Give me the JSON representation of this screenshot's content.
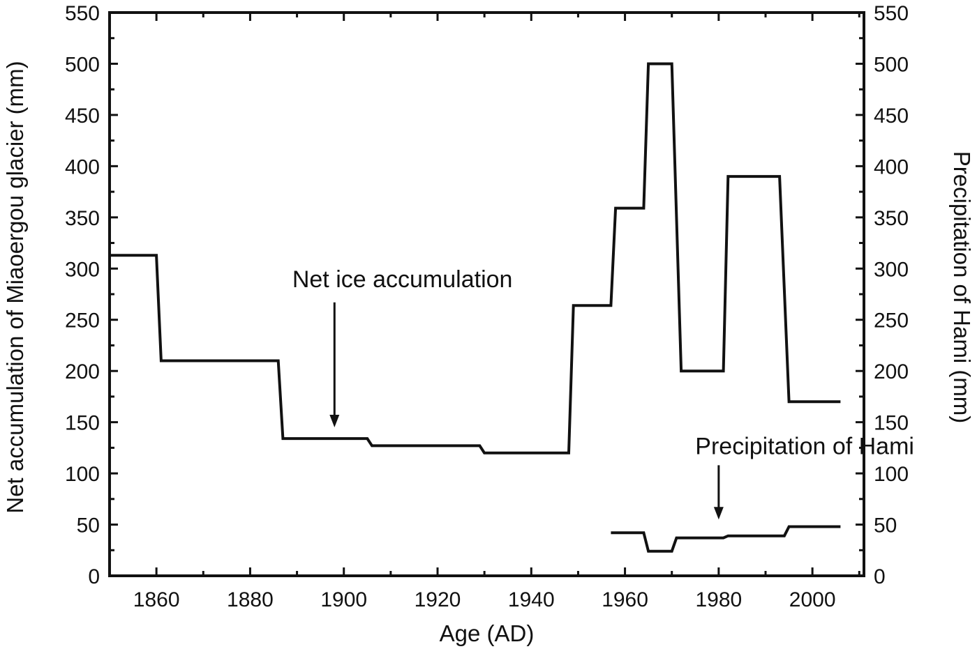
{
  "chart_data": {
    "type": "line",
    "title": "",
    "xlabel": "Age (AD)",
    "ylabel_left": "Net accumulation of Miaoergou glacier (mm)",
    "ylabel_right": "Precipitation of Hami (mm)",
    "xlim": [
      1850,
      2011
    ],
    "ylim": [
      0,
      550
    ],
    "x_ticks": [
      1860,
      1880,
      1900,
      1920,
      1940,
      1960,
      1980,
      2000
    ],
    "y_ticks": [
      0,
      50,
      100,
      150,
      200,
      250,
      300,
      350,
      400,
      450,
      500,
      550
    ],
    "grid": false,
    "line_color": "#111111",
    "series": [
      {
        "points": [
          [
            1850,
            313
          ],
          [
            1860,
            313
          ],
          [
            1861,
            210
          ],
          [
            1886,
            210
          ],
          [
            1887,
            134
          ],
          [
            1905,
            134
          ],
          [
            1906,
            127
          ],
          [
            1929,
            127
          ],
          [
            1930,
            120
          ],
          [
            1948,
            120
          ],
          [
            1949,
            264
          ],
          [
            1957,
            264
          ],
          [
            1958,
            359
          ],
          [
            1964,
            359
          ],
          [
            1965,
            500
          ],
          [
            1970,
            500
          ],
          [
            1972,
            200
          ],
          [
            1981,
            200
          ],
          [
            1982,
            390
          ],
          [
            1993,
            390
          ],
          [
            1995,
            170
          ],
          [
            2006,
            170
          ]
        ]
      },
      {
        "points": [
          [
            1957,
            42
          ],
          [
            1964,
            42
          ],
          [
            1965,
            24
          ],
          [
            1970,
            24
          ],
          [
            1971,
            37
          ],
          [
            1981,
            37
          ],
          [
            1982,
            39
          ],
          [
            1994,
            39
          ],
          [
            1995,
            48
          ],
          [
            2006,
            48
          ]
        ]
      }
    ],
    "annotations": [
      {
        "text": "Net ice accumulation",
        "label_x": 1889,
        "label_y": 290,
        "arrow_x": 1898,
        "arrow_from_y": 267,
        "arrow_to_y": 145
      },
      {
        "text": "Precipitation of Hami",
        "label_x": 1975,
        "label_y": 127,
        "arrow_x": 1980,
        "arrow_from_y": 108,
        "arrow_to_y": 55
      }
    ]
  }
}
